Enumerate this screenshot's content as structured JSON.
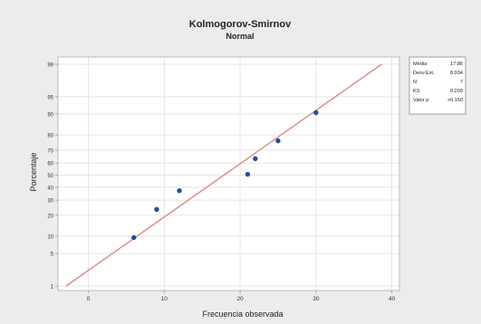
{
  "chart_data": {
    "type": "scatter",
    "title": "Kolmogorov-Smirnov",
    "subtitle": "Normal",
    "xlabel": "Frecuencia observada",
    "ylabel": "Porcentaje",
    "x_ticks": [
      "0",
      "10",
      "20",
      "30",
      "40"
    ],
    "x_tick_values": [
      0,
      10,
      20,
      30,
      40
    ],
    "xlim": [
      -4,
      41
    ],
    "y_ticks": [
      "1",
      "5",
      "10",
      "20",
      "30",
      "40",
      "50",
      "60",
      "70",
      "80",
      "90",
      "95",
      "99"
    ],
    "y_tick_values": [
      1,
      5,
      10,
      20,
      30,
      40,
      50,
      60,
      70,
      80,
      90,
      95,
      99
    ],
    "y_scale": "normal-probability",
    "ylim": [
      1,
      99
    ],
    "grid": true,
    "points": [
      {
        "x": 6,
        "y": 9.5
      },
      {
        "x": 9,
        "y": 23.6
      },
      {
        "x": 12,
        "y": 37.2
      },
      {
        "x": 21,
        "y": 50.7
      },
      {
        "x": 22,
        "y": 63.5
      },
      {
        "x": 25,
        "y": 76.4
      },
      {
        "x": 30,
        "y": 90.5
      }
    ],
    "fit_line": {
      "mean": 17.86,
      "sd": 8.934
    },
    "colors": {
      "points": "#1f4fa8",
      "fit_line": "#d98a82",
      "grid": "#dcdcdc",
      "outer_background": "#ececec",
      "plot_background": "#ffffff"
    },
    "legend_position": "top-right",
    "stats": [
      {
        "label": "Media",
        "value": "17.86"
      },
      {
        "label": "Desv.Est.",
        "value": "8.934"
      },
      {
        "label": "N",
        "value": "7"
      },
      {
        "label": "KS",
        "value": "0.209"
      },
      {
        "label": "Valor p",
        "value": ">0.150"
      }
    ]
  }
}
